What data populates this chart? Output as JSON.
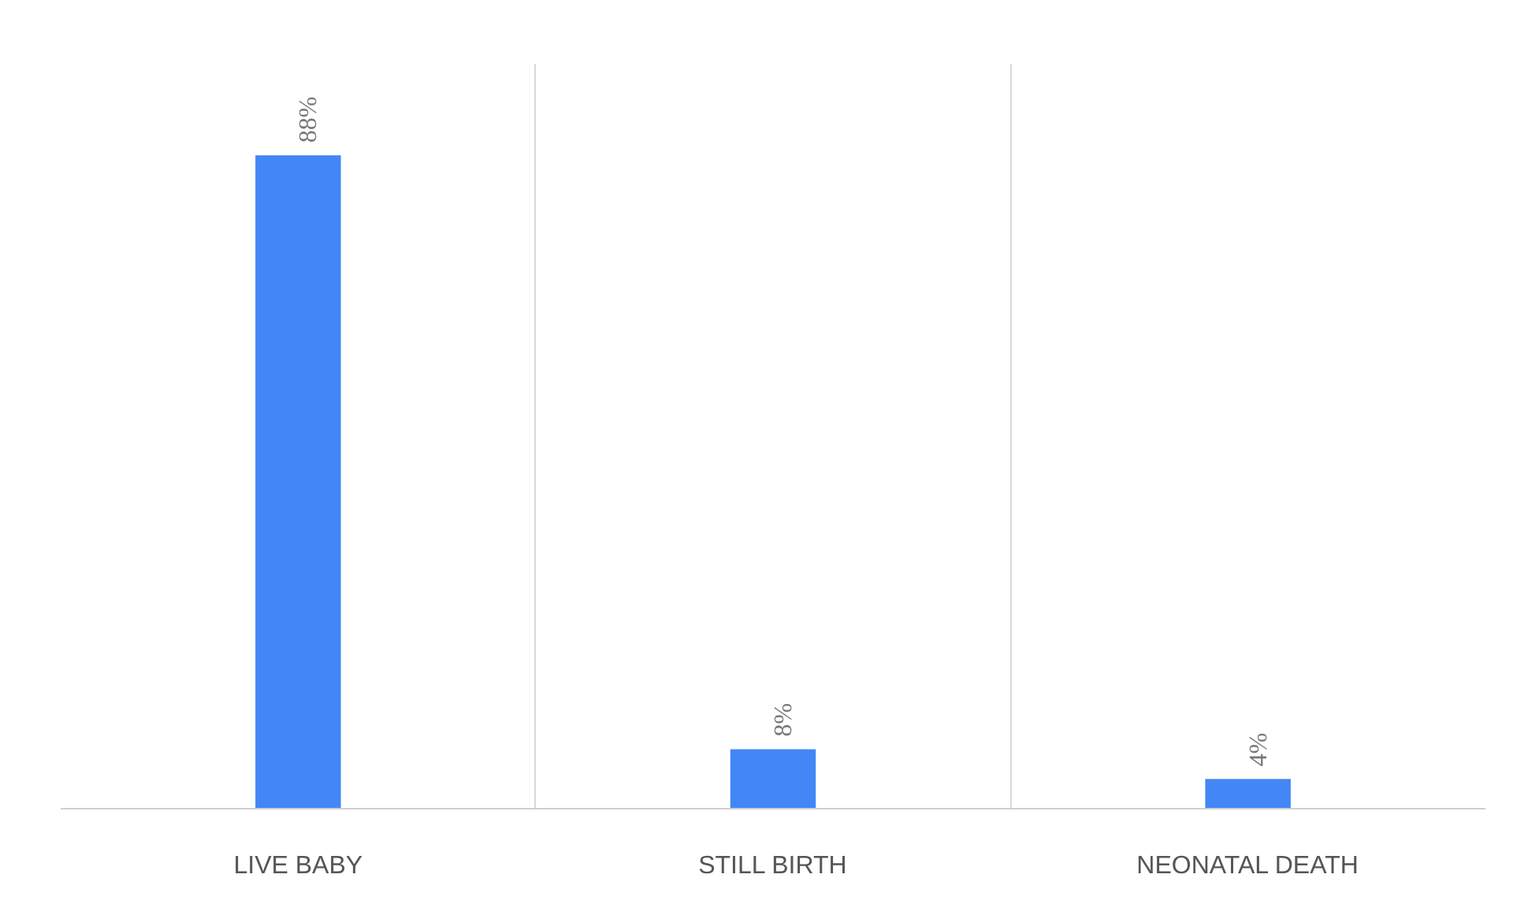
{
  "chart_data": {
    "type": "bar",
    "categories": [
      "LIVE BABY",
      "STILL BIRTH",
      "NEONATAL DEATH"
    ],
    "values": [
      88,
      8,
      4
    ],
    "color": "#4287f5",
    "value_labels": [
      "88%",
      "8%",
      "4%"
    ],
    "grid": "x"
  }
}
